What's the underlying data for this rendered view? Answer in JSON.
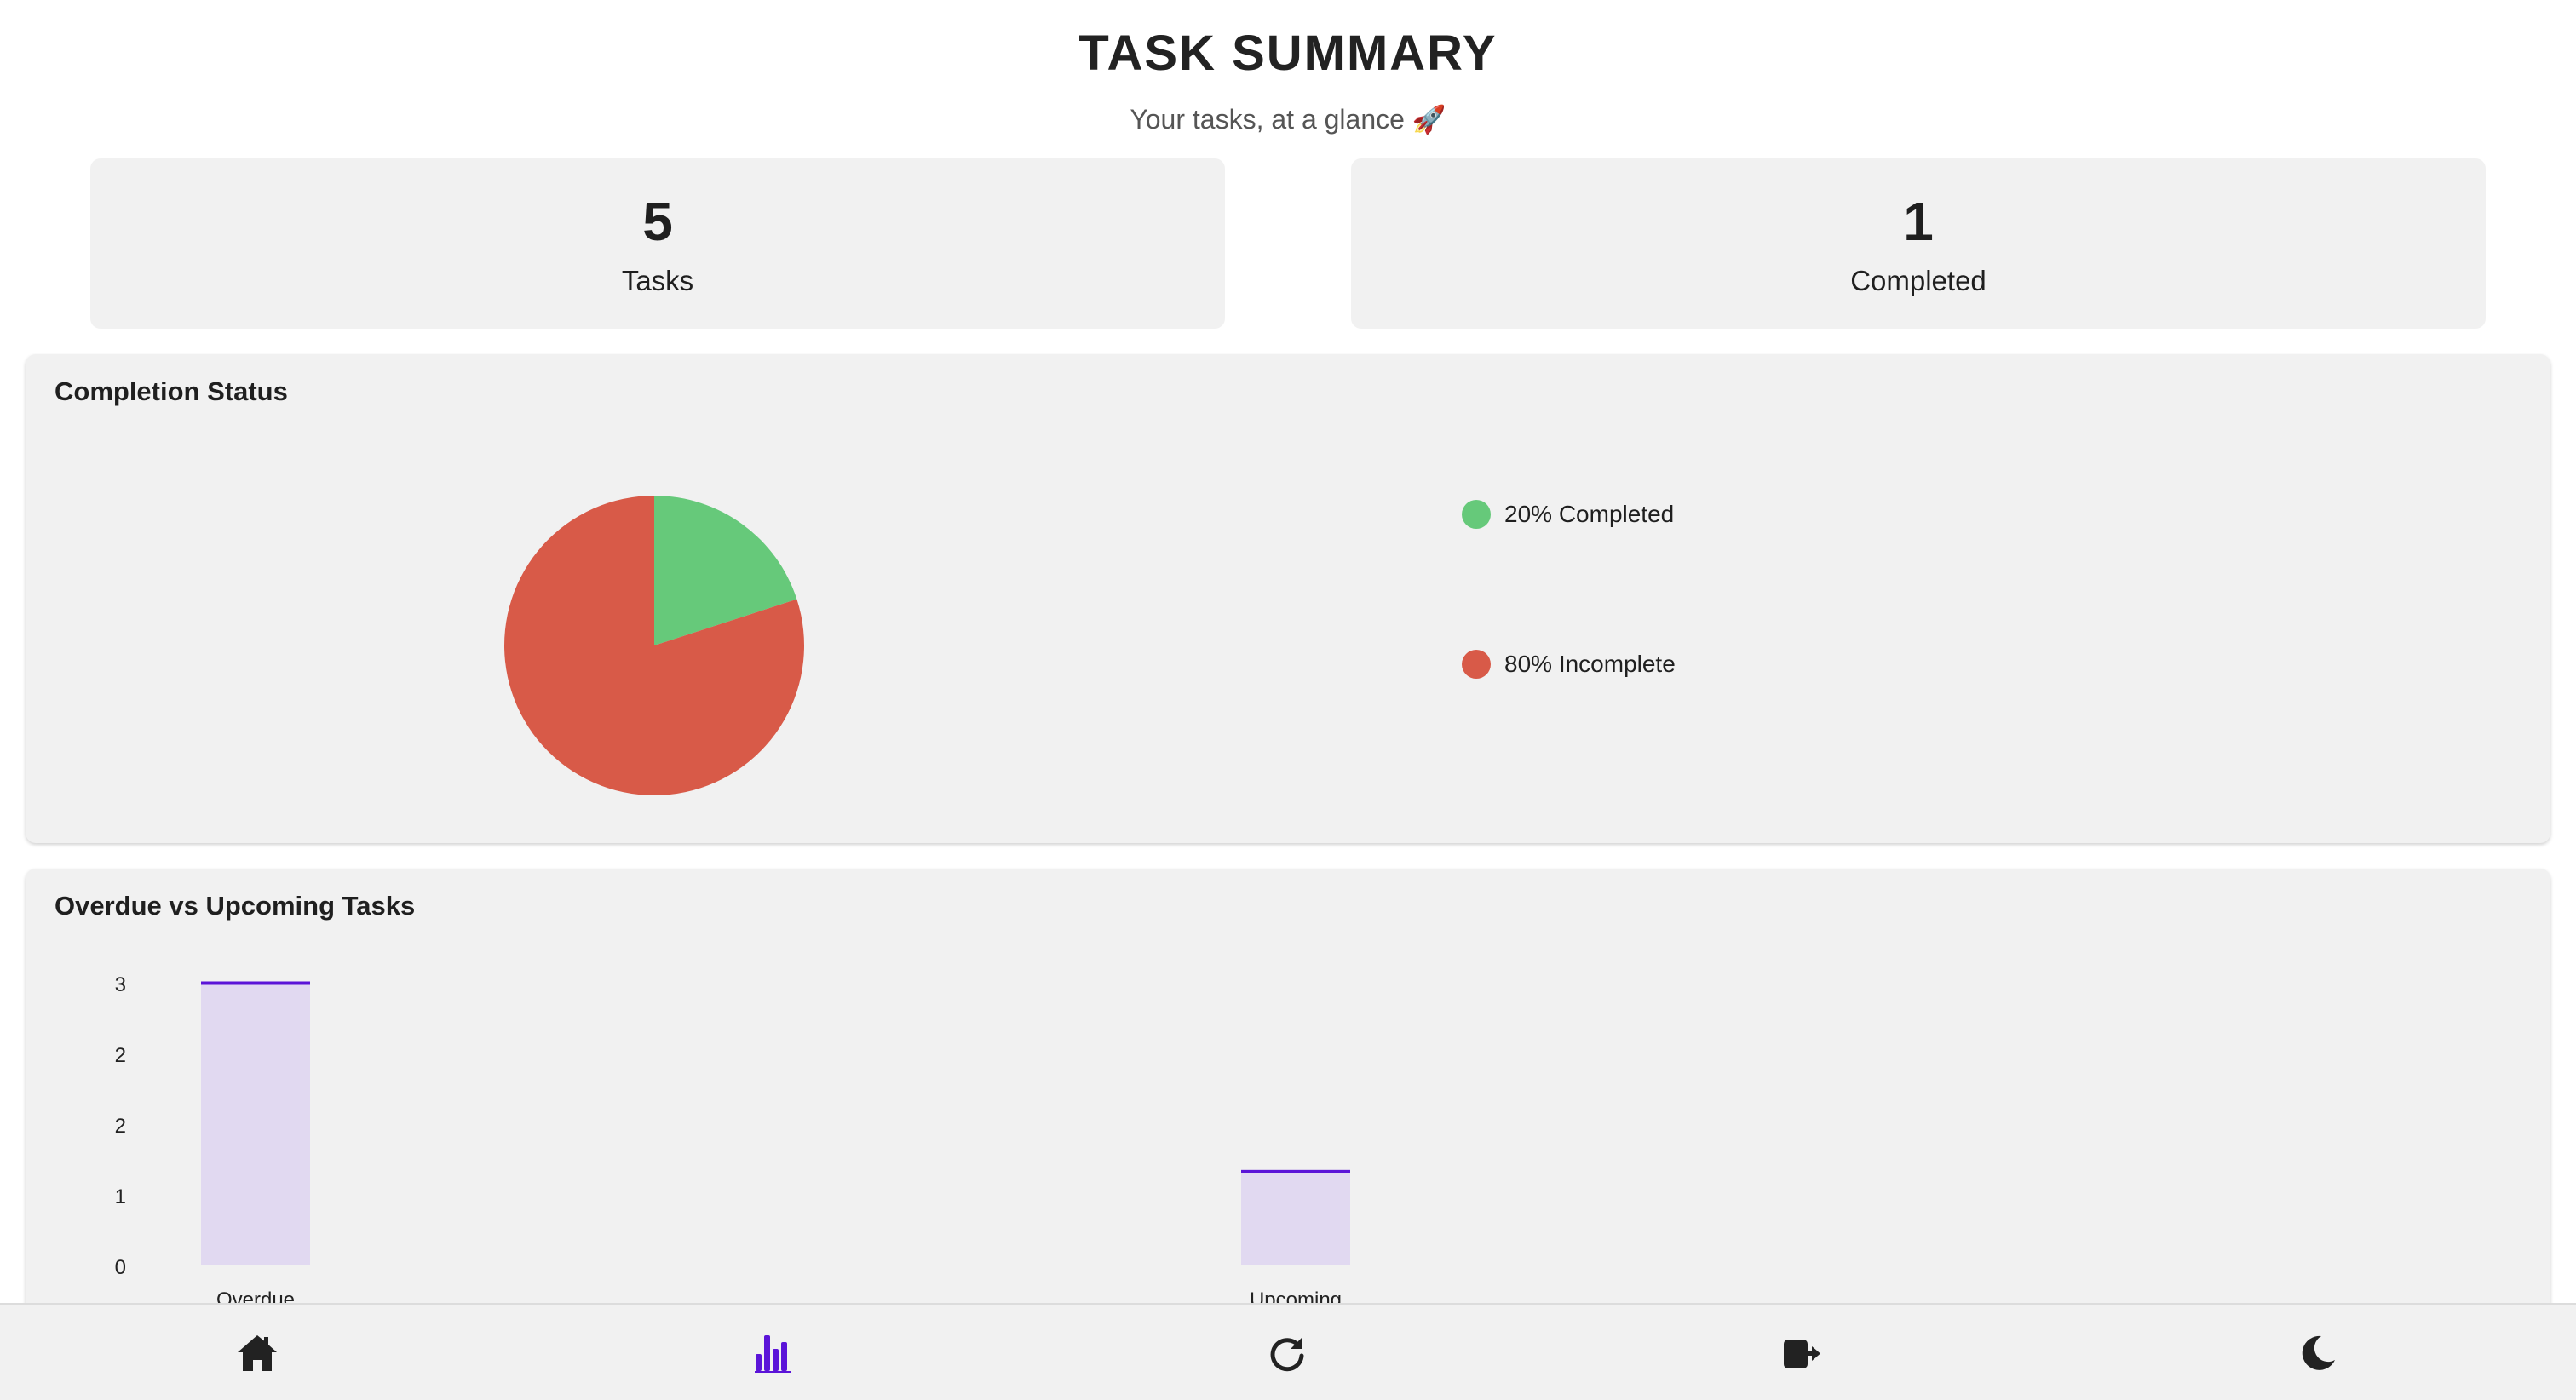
{
  "header": {
    "title": "TASK SUMMARY",
    "subtitle": "Your tasks, at a glance 🚀"
  },
  "stats": [
    {
      "value": "5",
      "label": "Tasks"
    },
    {
      "value": "1",
      "label": "Completed"
    }
  ],
  "completion_panel": {
    "title": "Completion Status",
    "legend": [
      {
        "label": "20% Completed",
        "color": "#66c97a"
      },
      {
        "label": "80% Incomplete",
        "color": "#d85a48"
      }
    ]
  },
  "overdue_panel": {
    "title": "Overdue vs Upcoming Tasks"
  },
  "chart_data": [
    {
      "type": "pie",
      "title": "Completion Status",
      "labels": [
        "Completed",
        "Incomplete"
      ],
      "values": [
        20,
        80
      ],
      "colors": [
        "#66c97a",
        "#d85a48"
      ],
      "legend_position": "right"
    },
    {
      "type": "bar",
      "title": "Overdue vs Upcoming Tasks",
      "categories": [
        "Overdue",
        "Upcoming"
      ],
      "values": [
        3,
        1
      ],
      "y_tick_labels": [
        "0",
        "1",
        "2",
        "2",
        "3"
      ],
      "ylim": [
        0,
        3
      ],
      "bar_fill": "#e1d9f1",
      "bar_edge": "#5b14d8"
    }
  ],
  "nav": [
    {
      "name": "home",
      "icon": "home-icon",
      "active": false
    },
    {
      "name": "stats",
      "icon": "bar-chart-icon",
      "active": true
    },
    {
      "name": "refresh",
      "icon": "refresh-icon",
      "active": false
    },
    {
      "name": "logout",
      "icon": "logout-icon",
      "active": false
    },
    {
      "name": "theme",
      "icon": "moon-icon",
      "active": false
    }
  ],
  "colors": {
    "accent": "#5b14d8",
    "card_bg": "#f1f1f1",
    "icon": "#222222"
  }
}
